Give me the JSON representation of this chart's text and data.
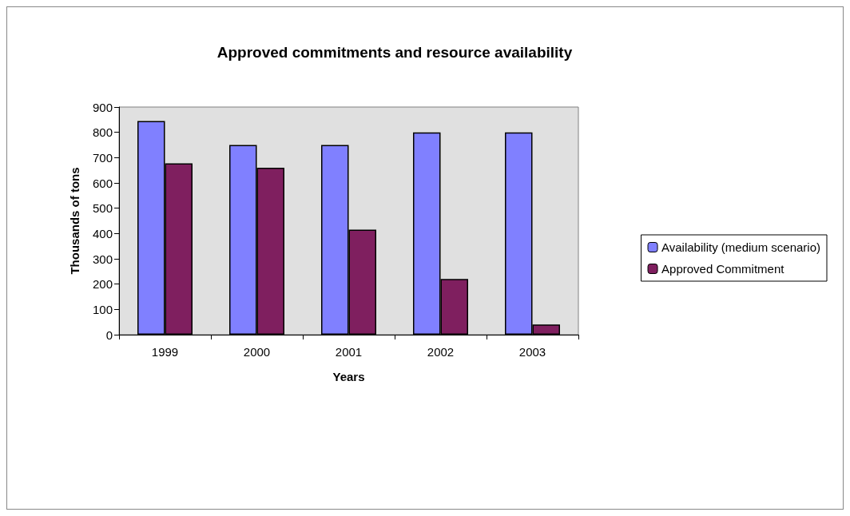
{
  "chart_data": {
    "type": "bar",
    "title": "Approved commitments and resource availability",
    "xlabel": "Years",
    "ylabel": "Thousands of tons",
    "categories": [
      "1999",
      "2000",
      "2001",
      "2002",
      "2003"
    ],
    "series": [
      {
        "name": "Availability (medium scenario)",
        "color": "#8080ff",
        "values": [
          845,
          750,
          750,
          800,
          800
        ]
      },
      {
        "name": "Approved Commitment",
        "color": "#7f1f5f",
        "values": [
          677,
          660,
          415,
          220,
          40
        ]
      }
    ],
    "ylim": [
      0,
      900
    ],
    "yticks": [
      0,
      100,
      200,
      300,
      400,
      500,
      600,
      700,
      800,
      900
    ],
    "grid": false,
    "legend": "right"
  }
}
